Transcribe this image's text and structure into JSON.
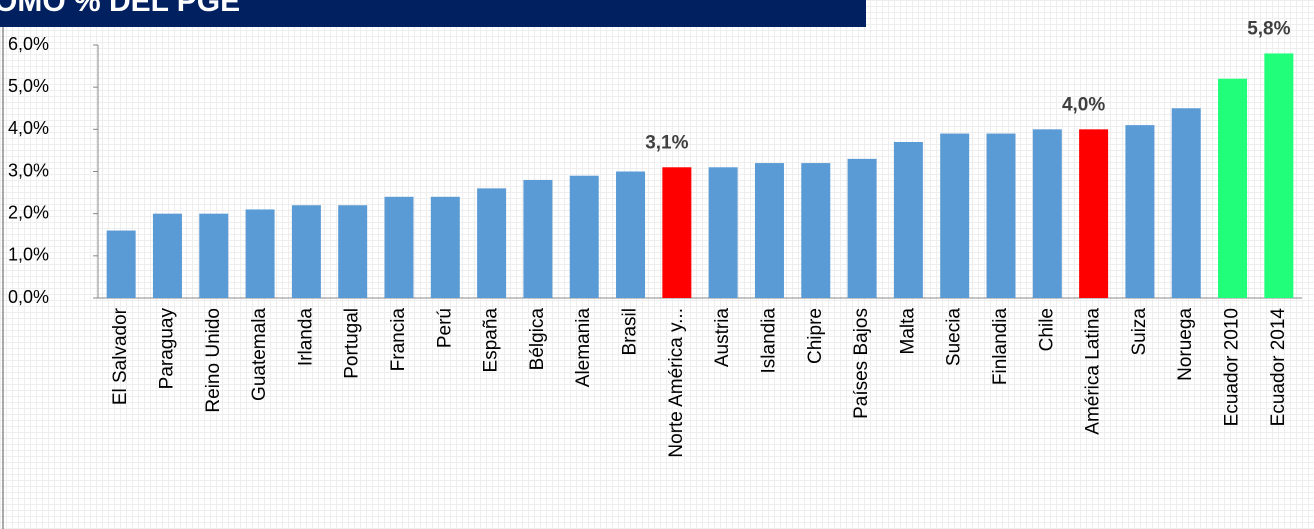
{
  "chart_data": {
    "type": "bar",
    "title": "OMO % DEL PGE",
    "categories": [
      "El Salvador",
      "Paraguay",
      "Reino Unido",
      "Guatemala",
      "Irlanda",
      "Portugal",
      "Francia",
      "Perú",
      "España",
      "Bélgica",
      "Alemania",
      "Brasil",
      "Norte América y...",
      "Austria",
      "Islandia",
      "Chipre",
      "Países Bajos",
      "Malta",
      "Suecia",
      "Finlandia",
      "Chile",
      "América Latina",
      "Suiza",
      "Noruega",
      "Ecuador 2010",
      "Ecuador 2014"
    ],
    "values": [
      1.6,
      2.0,
      2.0,
      2.1,
      2.2,
      2.2,
      2.4,
      2.4,
      2.6,
      2.8,
      2.9,
      3.0,
      3.1,
      3.1,
      3.2,
      3.2,
      3.3,
      3.7,
      3.9,
      3.9,
      4.0,
      4.0,
      4.1,
      4.5,
      5.2,
      5.8
    ],
    "value_labels": [
      null,
      null,
      null,
      null,
      null,
      null,
      null,
      null,
      null,
      null,
      null,
      null,
      "3,1%",
      null,
      null,
      null,
      null,
      null,
      null,
      null,
      null,
      "4,0%",
      null,
      null,
      null,
      "5,8%"
    ],
    "colors": [
      "#5b9bd5",
      "#5b9bd5",
      "#5b9bd5",
      "#5b9bd5",
      "#5b9bd5",
      "#5b9bd5",
      "#5b9bd5",
      "#5b9bd5",
      "#5b9bd5",
      "#5b9bd5",
      "#5b9bd5",
      "#5b9bd5",
      "#ff0000",
      "#5b9bd5",
      "#5b9bd5",
      "#5b9bd5",
      "#5b9bd5",
      "#5b9bd5",
      "#5b9bd5",
      "#5b9bd5",
      "#5b9bd5",
      "#ff0000",
      "#5b9bd5",
      "#5b9bd5",
      "#21ff7a",
      "#21ff7a"
    ],
    "ylim": [
      0,
      6
    ],
    "yticks": [
      {
        "value": 0,
        "label": "0,0%"
      },
      {
        "value": 1,
        "label": "1,0%"
      },
      {
        "value": 2,
        "label": "2,0%"
      },
      {
        "value": 3,
        "label": "3,0%"
      },
      {
        "value": 4,
        "label": "4,0%"
      },
      {
        "value": 5,
        "label": "5,0%"
      },
      {
        "value": 6,
        "label": "6,0%"
      }
    ]
  }
}
